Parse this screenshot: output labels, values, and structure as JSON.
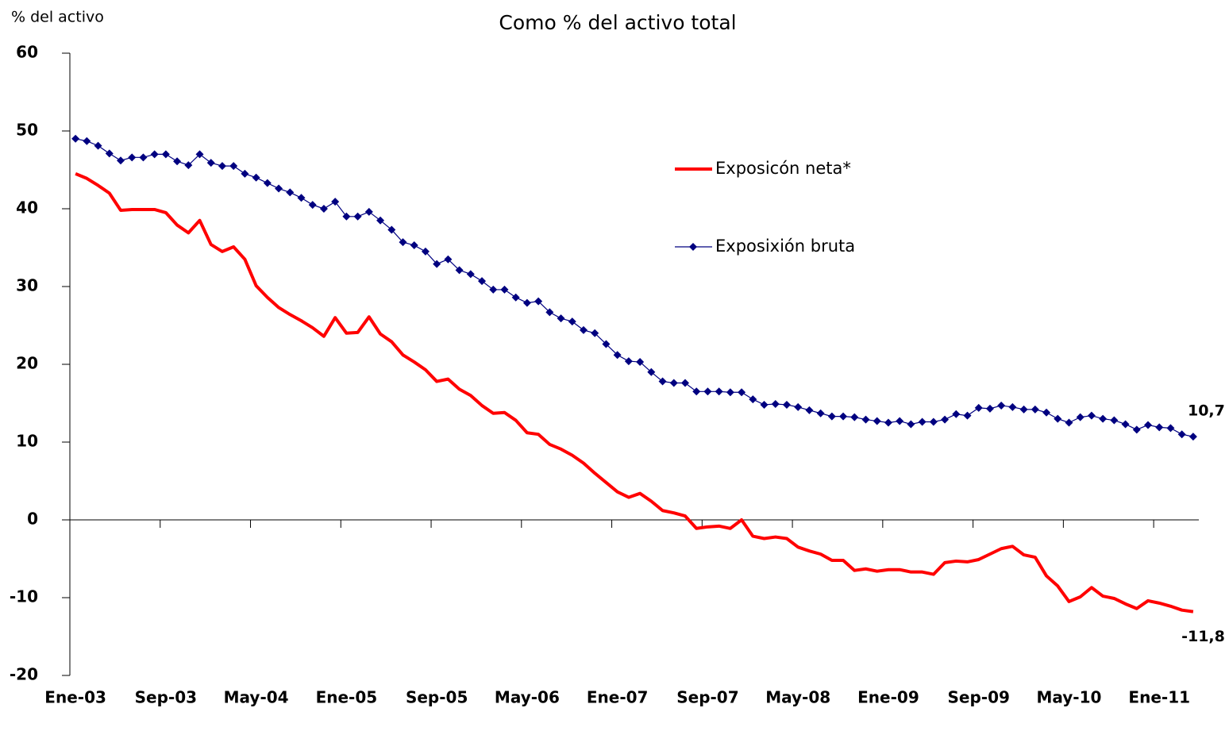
{
  "chart_data": {
    "type": "line",
    "title": "Como % del activo total",
    "y_label": "% del activo",
    "categories": [
      "Ene-03",
      null,
      null,
      null,
      null,
      null,
      null,
      null,
      "Sep-03",
      null,
      null,
      null,
      null,
      null,
      null,
      null,
      "May-04",
      null,
      null,
      null,
      null,
      null,
      null,
      null,
      "Ene-05",
      null,
      null,
      null,
      null,
      null,
      null,
      null,
      "Sep-05",
      null,
      null,
      null,
      null,
      null,
      null,
      null,
      "May-06",
      null,
      null,
      null,
      null,
      null,
      null,
      null,
      "Ene-07",
      null,
      null,
      null,
      null,
      null,
      null,
      null,
      "Sep-07",
      null,
      null,
      null,
      null,
      null,
      null,
      null,
      "May-08",
      null,
      null,
      null,
      null,
      null,
      null,
      null,
      "Ene-09",
      null,
      null,
      null,
      null,
      null,
      null,
      null,
      "Sep-09",
      null,
      null,
      null,
      null,
      null,
      null,
      null,
      "May-10",
      null,
      null,
      null,
      null,
      null,
      null,
      null,
      "Ene-11",
      null,
      null,
      null
    ],
    "series": [
      {
        "name": "Exposicón neta*",
        "color": "#ff0000",
        "marker": "none",
        "values": [
          44.5,
          43.9,
          43.0,
          42.0,
          39.8,
          39.9,
          39.9,
          39.9,
          39.5,
          37.9,
          36.9,
          38.5,
          35.4,
          34.5,
          35.1,
          33.5,
          30.1,
          28.6,
          27.3,
          26.4,
          25.6,
          24.7,
          23.6,
          26.0,
          24.0,
          24.1,
          26.1,
          23.9,
          22.9,
          21.2,
          20.3,
          19.3,
          17.8,
          18.1,
          16.8,
          16.0,
          14.7,
          13.7,
          13.8,
          12.8,
          11.2,
          11.0,
          9.7,
          9.1,
          8.3,
          7.3,
          6.0,
          4.8,
          3.6,
          2.9,
          3.4,
          2.4,
          1.2,
          0.9,
          0.5,
          -1.1,
          -0.9,
          -0.8,
          -1.1,
          0.0,
          -2.1,
          -2.4,
          -2.2,
          -2.4,
          -3.5,
          -4.0,
          -4.4,
          -5.2,
          -5.2,
          -6.5,
          -6.3,
          -6.6,
          -6.4,
          -6.4,
          -6.7,
          -6.7,
          -7.0,
          -5.5,
          -5.3,
          -5.4,
          -5.1,
          -4.4,
          -3.7,
          -3.4,
          -4.5,
          -4.8,
          -7.2,
          -8.5,
          -10.5,
          -9.9,
          -8.7,
          -9.8,
          -10.1,
          -10.8,
          -11.4,
          -10.4,
          -10.7,
          -11.1,
          -11.6,
          -11.8
        ],
        "value_labels": [
          null,
          null,
          null,
          null,
          null,
          null,
          null,
          null,
          null,
          null,
          null,
          null,
          null,
          null,
          null,
          null,
          null,
          null,
          null,
          null,
          null,
          null,
          null,
          null,
          null,
          null,
          null,
          null,
          null,
          null,
          null,
          null,
          null,
          null,
          null,
          null,
          null,
          null,
          null,
          null,
          null,
          null,
          null,
          null,
          null,
          null,
          null,
          null,
          null,
          null,
          null,
          null,
          null,
          null,
          null,
          null,
          null,
          null,
          null,
          null,
          null,
          null,
          null,
          null,
          null,
          null,
          null,
          null,
          null,
          null,
          null,
          null,
          null,
          null,
          null,
          null,
          null,
          null,
          null,
          null,
          null,
          null,
          null,
          null,
          null,
          null,
          null,
          null,
          null,
          null,
          null,
          null,
          null,
          null,
          null,
          null,
          null,
          null,
          null,
          "-11,8"
        ]
      },
      {
        "name": "Exposixión bruta",
        "color": "#000080",
        "marker": "diamond",
        "values": [
          49.0,
          48.7,
          48.1,
          47.1,
          46.2,
          46.6,
          46.6,
          47.0,
          47.0,
          46.1,
          45.6,
          47.0,
          45.9,
          45.5,
          45.5,
          44.5,
          44.0,
          43.3,
          42.6,
          42.1,
          41.4,
          40.5,
          40.0,
          40.9,
          39.0,
          39.0,
          39.6,
          38.5,
          37.3,
          35.7,
          35.3,
          34.5,
          32.9,
          33.5,
          32.1,
          31.6,
          30.7,
          29.6,
          29.6,
          28.6,
          27.9,
          28.1,
          26.7,
          25.9,
          25.5,
          24.4,
          24.0,
          22.6,
          21.2,
          20.4,
          20.3,
          19.0,
          17.8,
          17.6,
          17.6,
          16.5,
          16.5,
          16.5,
          16.4,
          16.4,
          15.5,
          14.8,
          14.9,
          14.8,
          14.5,
          14.1,
          13.7,
          13.3,
          13.3,
          13.2,
          12.9,
          12.7,
          12.5,
          12.7,
          12.3,
          12.6,
          12.6,
          12.9,
          13.6,
          13.4,
          14.4,
          14.3,
          14.7,
          14.5,
          14.2,
          14.2,
          13.8,
          13.0,
          12.5,
          13.2,
          13.4,
          13.0,
          12.8,
          12.3,
          11.6,
          12.2,
          11.9,
          11.8,
          11.0,
          10.7
        ],
        "value_labels": [
          null,
          null,
          null,
          null,
          null,
          null,
          null,
          null,
          null,
          null,
          null,
          null,
          null,
          null,
          null,
          null,
          null,
          null,
          null,
          null,
          null,
          null,
          null,
          null,
          null,
          null,
          null,
          null,
          null,
          null,
          null,
          null,
          null,
          null,
          null,
          null,
          null,
          null,
          null,
          null,
          null,
          null,
          null,
          null,
          null,
          null,
          null,
          null,
          null,
          null,
          null,
          null,
          null,
          null,
          null,
          null,
          null,
          null,
          null,
          null,
          null,
          null,
          null,
          null,
          null,
          null,
          null,
          null,
          null,
          null,
          null,
          null,
          null,
          null,
          null,
          null,
          null,
          null,
          null,
          null,
          null,
          null,
          null,
          null,
          null,
          null,
          null,
          null,
          null,
          null,
          null,
          null,
          null,
          null,
          null,
          null,
          null,
          null,
          null,
          "10,7"
        ]
      }
    ],
    "ylim": [
      -20,
      60
    ],
    "yticks": [
      -20,
      -10,
      0,
      10,
      20,
      30,
      40,
      50,
      60
    ],
    "grid": false
  }
}
